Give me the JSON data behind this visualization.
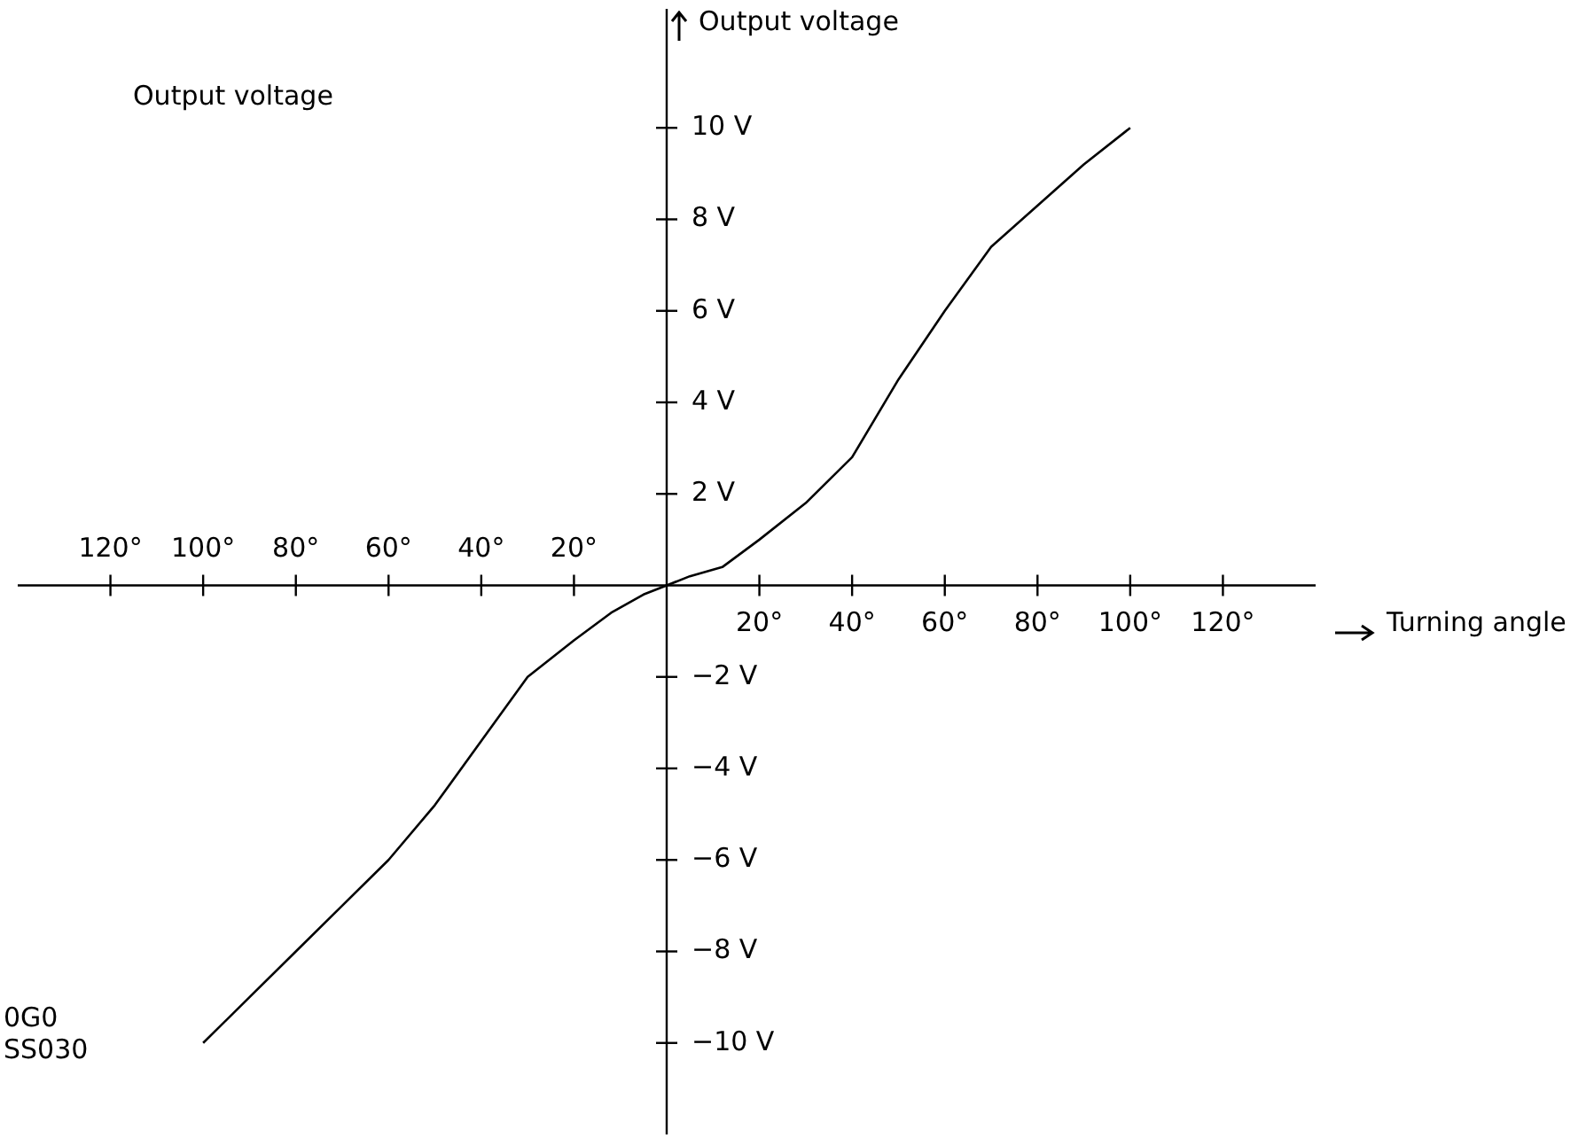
{
  "chart_data": {
    "type": "line",
    "title": "Output voltage",
    "xlabel": "Turning angle",
    "ylabel": "Output voltage",
    "x": [
      -100,
      -90,
      -80,
      -70,
      -60,
      -50,
      -40,
      -30,
      -20,
      -12,
      -5,
      0,
      5,
      12,
      20,
      30,
      40,
      50,
      60,
      70,
      80,
      90,
      100
    ],
    "series": [
      {
        "color": "#000000",
        "values": [
          -10,
          -9,
          -8,
          -7,
          -6,
          -4.8,
          -3.4,
          -2,
          -1.2,
          -0.6,
          -0.2,
          0,
          0.2,
          0.4,
          1,
          1.8,
          2.8,
          4.5,
          6,
          7.4,
          8.3,
          9.2,
          10
        ]
      }
    ],
    "xlim": [
      -140,
      140
    ],
    "ylim": [
      -12,
      12.6
    ],
    "x2lim": [
      -140,
      140
    ],
    "x2ticks": [
      {
        "value": -120,
        "label": "120°"
      },
      {
        "value": -100,
        "label": "100°"
      },
      {
        "value": -80,
        "label": "80°"
      },
      {
        "value": -60,
        "label": "60°"
      },
      {
        "value": -40,
        "label": "40°"
      },
      {
        "value": -20,
        "label": "20°"
      }
    ],
    "xticks": [
      {
        "value": 20,
        "label": "20°"
      },
      {
        "value": 40,
        "label": "40°"
      },
      {
        "value": 60,
        "label": "60°"
      },
      {
        "value": 80,
        "label": "80°"
      },
      {
        "value": 100,
        "label": "100°"
      },
      {
        "value": 120,
        "label": "120°"
      }
    ],
    "yticks": [
      {
        "value": -10,
        "label": "−10 V"
      },
      {
        "value": -8,
        "label": "−8 V"
      },
      {
        "value": -6,
        "label": "−6 V"
      },
      {
        "value": -4,
        "label": "−4 V"
      },
      {
        "value": -2,
        "label": "−2 V"
      },
      {
        "value": 2,
        "label": "2 V"
      },
      {
        "value": 4,
        "label": "4 V"
      },
      {
        "value": 6,
        "label": "6 V"
      },
      {
        "value": 8,
        "label": "8 V"
      },
      {
        "value": 10,
        "label": "10 V"
      }
    ],
    "marker": "none",
    "line_style": "solid",
    "annotations": [
      "0G0",
      "SS030"
    ]
  }
}
